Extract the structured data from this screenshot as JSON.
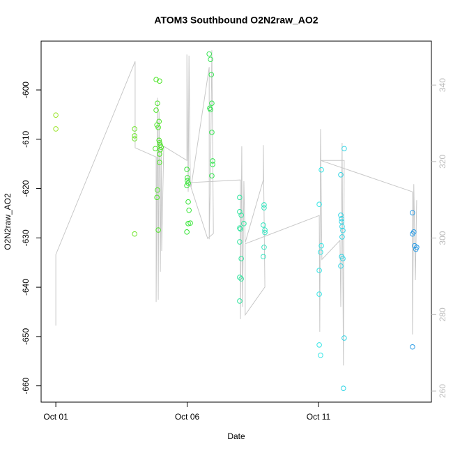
{
  "chart_data": {
    "type": "scatter",
    "title": "ATOM3 Southbound O2N2raw_AO2",
    "x_label": "Date",
    "y_label": "O2N2raw_AO2",
    "xlim": [
      -0.56,
      14.3
    ],
    "xticks": [
      {
        "value": 0,
        "label": "Oct 01"
      },
      {
        "value": 5,
        "label": "Oct 06"
      },
      {
        "value": 10,
        "label": "Oct 11"
      }
    ],
    "ylim": [
      -663.3,
      -590.1
    ],
    "yticks": [
      -660,
      -650,
      -640,
      -630,
      -620,
      -610,
      -600
    ],
    "y2lim": [
      257.1,
      351.5
    ],
    "y2ticks": [
      260,
      280,
      300,
      320,
      340
    ],
    "y2_color": "#bbbbbb",
    "series": [
      {
        "x": [
          0,
          0,
          3.0,
          3.0,
          3.0,
          3.0,
          3.82,
          3.95,
          3.87,
          3.82,
          3.93,
          3.85,
          3.9,
          3.93,
          3.95,
          3.98,
          4.01,
          3.98,
          3.79,
          3.95,
          3.95,
          3.87,
          3.85,
          3.9,
          4.99,
          5.01,
          5.01,
          5.04,
          4.99,
          5.04,
          5.07,
          5.12,
          5.04,
          4.99,
          5.84,
          5.89,
          5.92,
          5.94,
          5.86,
          5.89,
          5.94,
          5.97,
          5.97,
          5.94,
          7.0,
          7.0,
          7.06,
          7.16,
          7.0,
          7.03,
          7.0,
          7.06,
          7.0,
          7.06,
          7.0,
          7.93,
          7.93,
          7.9,
          7.96,
          7.96,
          7.93,
          7.9,
          10.11,
          10.03,
          10.11,
          10.08,
          10.03,
          10.03,
          10.03,
          10.08,
          10.98,
          10.85,
          10.85,
          10.88,
          10.88,
          10.9,
          10.93,
          10.9,
          10.88,
          10.93,
          10.85,
          10.98,
          10.95,
          13.58,
          13.63,
          13.58,
          13.66,
          13.74,
          13.71,
          13.58
        ],
        "values": [
          -605.1,
          -607.9,
          -607.9,
          -609.3,
          -609.9,
          -629.2,
          -597.9,
          -598.2,
          -602.7,
          -604.1,
          -606.4,
          -607.1,
          -607.6,
          -610.2,
          -610.7,
          -611.2,
          -611.6,
          -612.1,
          -611.9,
          -613.0,
          -614.7,
          -620.3,
          -621.8,
          -628.4,
          -616.1,
          -617.8,
          -618.4,
          -618.9,
          -619.4,
          -622.7,
          -624.4,
          -627.0,
          -627.1,
          -628.8,
          -592.7,
          -593.8,
          -596.9,
          -602.7,
          -603.7,
          -604.0,
          -608.6,
          -614.4,
          -615.1,
          -617.4,
          -621.8,
          -624.7,
          -625.4,
          -627.1,
          -628.0,
          -628.2,
          -630.8,
          -634.2,
          -638.0,
          -638.3,
          -642.8,
          -623.3,
          -623.9,
          -627.4,
          -628.4,
          -628.9,
          -631.9,
          -633.8,
          -616.2,
          -623.2,
          -631.6,
          -632.9,
          -636.6,
          -641.4,
          -651.7,
          -653.8,
          -611.9,
          -617.2,
          -625.4,
          -626.1,
          -626.7,
          -627.7,
          -628.5,
          -629.8,
          -633.8,
          -634.2,
          -635.7,
          -650.3,
          -660.5,
          -624.9,
          -628.8,
          -629.2,
          -631.6,
          -631.9,
          -632.3,
          -652.1
        ],
        "colors": [
          "#9be52a",
          "#9be52a",
          "#6ee52a",
          "#6ee52a",
          "#6ee52a",
          "#6ee52a",
          "#4fe52a",
          "#4fe52a",
          "#4fe52a",
          "#4fe52a",
          "#4fe52a",
          "#4fe52a",
          "#4fe52a",
          "#4fe52a",
          "#4fe52a",
          "#4fe52a",
          "#4fe52a",
          "#4fe52a",
          "#4fe52a",
          "#4fe52a",
          "#4fe52a",
          "#4fe52a",
          "#4fe52a",
          "#4fe52a",
          "#33e533",
          "#33e533",
          "#33e533",
          "#33e533",
          "#33e533",
          "#33e533",
          "#33e533",
          "#33e533",
          "#33e533",
          "#33e533",
          "#33e54f",
          "#33e54f",
          "#33e54f",
          "#33e54f",
          "#33e54f",
          "#33e54f",
          "#33e54f",
          "#33e54f",
          "#33e54f",
          "#33e54f",
          "#33e5a0",
          "#33e5a0",
          "#33e5a0",
          "#33e5a0",
          "#33e5a0",
          "#33e5a0",
          "#33e5a0",
          "#33e5a0",
          "#33e5a0",
          "#33e5a0",
          "#33e5a0",
          "#33e5c0",
          "#33e5c0",
          "#33e5c0",
          "#33e5c0",
          "#33e5c0",
          "#33e5c0",
          "#33e5c0",
          "#33e5e5",
          "#33e5e5",
          "#33e5e5",
          "#33e5e5",
          "#33e5e5",
          "#33e5e5",
          "#33e5e5",
          "#33e5e5",
          "#33d5e5",
          "#33d5e5",
          "#33d5e5",
          "#33d5e5",
          "#33d5e5",
          "#33d5e5",
          "#33d5e5",
          "#33d5e5",
          "#33d5e5",
          "#33d5e5",
          "#33d5e5",
          "#33d5e5",
          "#33d5e5",
          "#2a9be5",
          "#2a9be5",
          "#2a9be5",
          "#2a9be5",
          "#2a9be5",
          "#2a9be5",
          "#2a9be5"
        ]
      },
      {
        "axis": "y2",
        "style": "line",
        "color": "#c8c8c8",
        "x": [
          0,
          0,
          3.02,
          3.02,
          3.82,
          3.82,
          3.87,
          3.9,
          3.93,
          3.98,
          4.01,
          4.03,
          4.11,
          4.99,
          4.99,
          5.04,
          5.07,
          5.12,
          5.15,
          5.84,
          5.84,
          5.89,
          5.94,
          6.0,
          5.78,
          5.09,
          7.03,
          7.03,
          7.08,
          7.11,
          7.16,
          7.21,
          7.9,
          7.9,
          7.96,
          7.21,
          7.21,
          10.03,
          10.05,
          10.08,
          10.13,
          10.82,
          10.85,
          10.9,
          10.95,
          10.98,
          10.08,
          13.58,
          13.58,
          13.63,
          13.69,
          13.74
        ],
        "values": [
          277.1,
          295.7,
          346.2,
          323.6,
          321.2,
          283.3,
          336.7,
          283.9,
          333.1,
          291.2,
          325.8,
          296.6,
          324.0,
          320.3,
          348.0,
          312.1,
          347.7,
          314.9,
          313.4,
          344.7,
          299.7,
          316.7,
          349.1,
          301.2,
          299.9,
          314.5,
          315.2,
          278.8,
          324.0,
          282.0,
          314.9,
          298.8,
          315.2,
          324.3,
          287.2,
          279.9,
          298.5,
          305.9,
          275.5,
          328.5,
          294.4,
          299.4,
          282.0,
          324.9,
          266.7,
          320.3,
          320.3,
          312.1,
          274.8,
          314.1,
          289.0,
          309.9
        ]
      }
    ]
  }
}
